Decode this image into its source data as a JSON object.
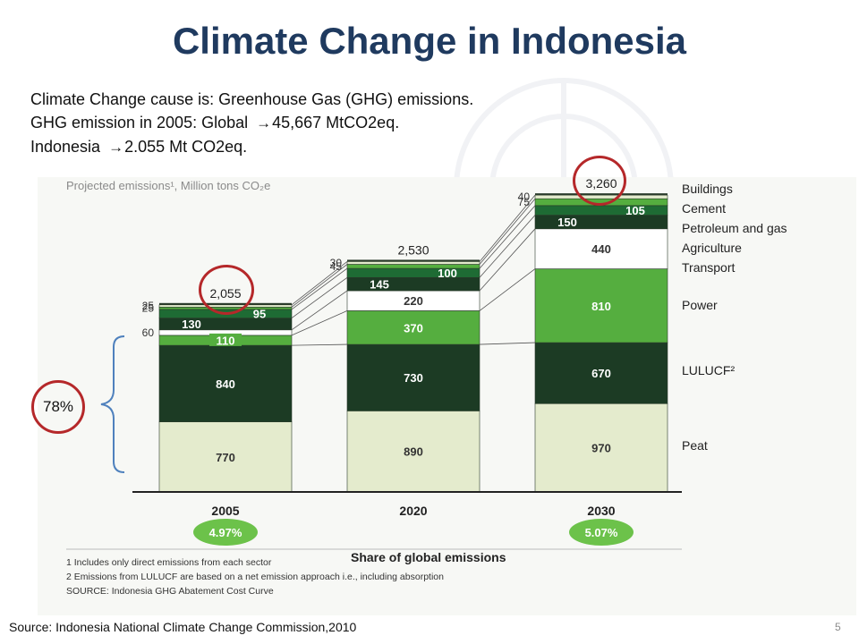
{
  "title": "Climate Change in Indonesia",
  "intro": {
    "line1": "Climate Change cause is: Greenhouse Gas (GHG) emissions.",
    "line2_prefix": "GHG emission in 2005: Global ",
    "line2_value": "45,667 MtCO2eq.",
    "line3_prefix": "Indonesia ",
    "line3_value": "2.055 Mt CO2eq.",
    "arrow_glyph": "→"
  },
  "callout": {
    "label": "78%"
  },
  "source": "Source: Indonesia National Climate Change Commission,2010",
  "page_number": "5",
  "chart_data": {
    "type": "bar",
    "stacked": true,
    "title": "Projected emissions¹, Million tons CO₂e",
    "categories": [
      "2005",
      "2020",
      "2030"
    ],
    "totals": [
      "2,055",
      "2,530",
      "3,260"
    ],
    "series": [
      {
        "name": "Peat",
        "values": [
          770,
          890,
          970
        ],
        "color": "#e4ebcd",
        "label_color": "#333333"
      },
      {
        "name": "LULUCF²",
        "values": [
          840,
          730,
          670
        ],
        "color": "#1c3b24",
        "label_color": "#ffffff"
      },
      {
        "name": "Power",
        "values": [
          110,
          370,
          810
        ],
        "color": "#55ae3f",
        "label_color": "#ffffff"
      },
      {
        "name": "Transport",
        "values": [
          60,
          220,
          440
        ],
        "color": "#ffffff",
        "label_color": "#333333"
      },
      {
        "name": "Agriculture",
        "values": [
          130,
          145,
          150
        ],
        "color": "#1c3b24",
        "label_color": "#ffffff"
      },
      {
        "name": "Petroleum and gas",
        "values": [
          95,
          100,
          105
        ],
        "color": "#1e6b34",
        "label_color": "#ffffff"
      },
      {
        "name": "Cement",
        "values": [
          25,
          45,
          75
        ],
        "color": "#55ae3f",
        "label_color": "#ffffff"
      },
      {
        "name": "Buildings",
        "values": [
          25,
          30,
          40
        ],
        "color": "#e4ebcd",
        "label_color": "#333333"
      }
    ],
    "share_label": "Share of global emissions",
    "shares": [
      {
        "category": "2005",
        "value": "4.97%"
      },
      {
        "category": "2030",
        "value": "5.07%"
      }
    ],
    "footnotes": [
      "1 Includes only direct emissions from each sector",
      "2 Emissions from LULUCF are based on a net emission approach i.e., including absorption",
      "SOURCE: Indonesia GHG Abatement Cost Curve"
    ],
    "legend_position": "right"
  }
}
